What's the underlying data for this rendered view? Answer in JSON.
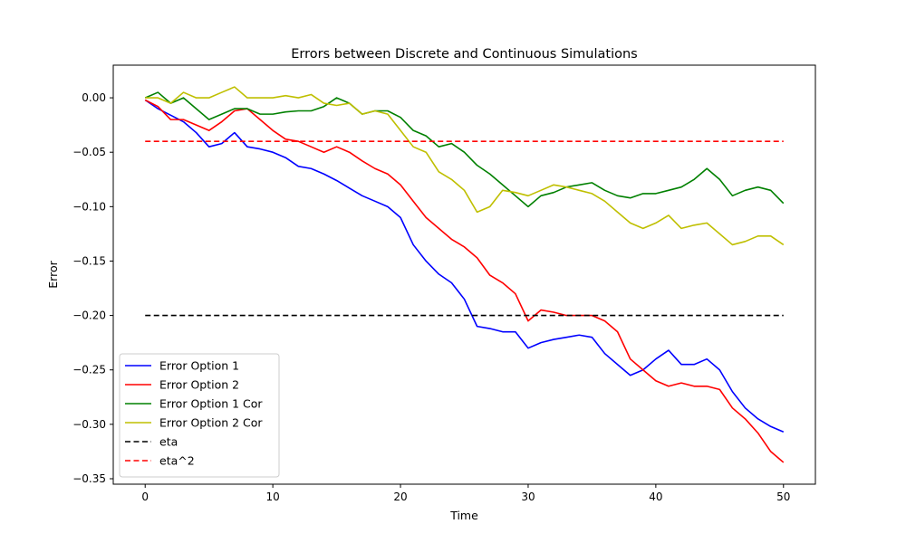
{
  "chart_data": {
    "type": "line",
    "title": "Errors between Discrete and Continuous Simulations",
    "xlabel": "Time",
    "ylabel": "Error",
    "xlim": [
      -2.5,
      52.5
    ],
    "ylim": [
      -0.355,
      0.03
    ],
    "xticks": [
      0,
      10,
      20,
      30,
      40,
      50
    ],
    "yticks": [
      0.0,
      -0.05,
      -0.1,
      -0.15,
      -0.2,
      -0.25,
      -0.3,
      -0.35
    ],
    "ytick_labels": [
      "0.00",
      "−0.05",
      "−0.10",
      "−0.15",
      "−0.20",
      "−0.25",
      "−0.30",
      "−0.35"
    ],
    "xtick_labels": [
      "0",
      "10",
      "20",
      "30",
      "40",
      "50"
    ],
    "grid": false,
    "legend_position": "lower-left",
    "series": [
      {
        "name": "Error Option 1",
        "color": "#0000ff",
        "style": "solid",
        "points": [
          [
            0,
            -0.002
          ],
          [
            1,
            -0.01
          ],
          [
            2,
            -0.016
          ],
          [
            3,
            -0.022
          ],
          [
            4,
            -0.032
          ],
          [
            5,
            -0.045
          ],
          [
            6,
            -0.042
          ],
          [
            7,
            -0.032
          ],
          [
            8,
            -0.045
          ],
          [
            9,
            -0.047
          ],
          [
            10,
            -0.05
          ],
          [
            11,
            -0.055
          ],
          [
            12,
            -0.063
          ],
          [
            13,
            -0.065
          ],
          [
            14,
            -0.07
          ],
          [
            15,
            -0.076
          ],
          [
            16,
            -0.083
          ],
          [
            17,
            -0.09
          ],
          [
            18,
            -0.095
          ],
          [
            19,
            -0.1
          ],
          [
            20,
            -0.11
          ],
          [
            21,
            -0.135
          ],
          [
            22,
            -0.15
          ],
          [
            23,
            -0.162
          ],
          [
            24,
            -0.17
          ],
          [
            25,
            -0.185
          ],
          [
            26,
            -0.21
          ],
          [
            27,
            -0.212
          ],
          [
            28,
            -0.215
          ],
          [
            29,
            -0.215
          ],
          [
            30,
            -0.23
          ],
          [
            31,
            -0.225
          ],
          [
            32,
            -0.222
          ],
          [
            33,
            -0.22
          ],
          [
            34,
            -0.218
          ],
          [
            35,
            -0.22
          ],
          [
            36,
            -0.235
          ],
          [
            37,
            -0.245
          ],
          [
            38,
            -0.255
          ],
          [
            39,
            -0.25
          ],
          [
            40,
            -0.24
          ],
          [
            41,
            -0.232
          ],
          [
            42,
            -0.245
          ],
          [
            43,
            -0.245
          ],
          [
            44,
            -0.24
          ],
          [
            45,
            -0.25
          ],
          [
            46,
            -0.27
          ],
          [
            47,
            -0.285
          ],
          [
            48,
            -0.295
          ],
          [
            49,
            -0.302
          ],
          [
            50,
            -0.307
          ]
        ]
      },
      {
        "name": "Error Option 2",
        "color": "#ff0000",
        "style": "solid",
        "points": [
          [
            0,
            -0.002
          ],
          [
            1,
            -0.008
          ],
          [
            2,
            -0.02
          ],
          [
            3,
            -0.02
          ],
          [
            4,
            -0.025
          ],
          [
            5,
            -0.03
          ],
          [
            6,
            -0.022
          ],
          [
            7,
            -0.012
          ],
          [
            8,
            -0.01
          ],
          [
            9,
            -0.02
          ],
          [
            10,
            -0.03
          ],
          [
            11,
            -0.038
          ],
          [
            12,
            -0.04
          ],
          [
            13,
            -0.045
          ],
          [
            14,
            -0.05
          ],
          [
            15,
            -0.045
          ],
          [
            16,
            -0.05
          ],
          [
            17,
            -0.058
          ],
          [
            18,
            -0.065
          ],
          [
            19,
            -0.07
          ],
          [
            20,
            -0.08
          ],
          [
            21,
            -0.095
          ],
          [
            22,
            -0.11
          ],
          [
            23,
            -0.12
          ],
          [
            24,
            -0.13
          ],
          [
            25,
            -0.137
          ],
          [
            26,
            -0.147
          ],
          [
            27,
            -0.163
          ],
          [
            28,
            -0.17
          ],
          [
            29,
            -0.18
          ],
          [
            30,
            -0.205
          ],
          [
            31,
            -0.195
          ],
          [
            32,
            -0.197
          ],
          [
            33,
            -0.2
          ],
          [
            34,
            -0.2
          ],
          [
            35,
            -0.2
          ],
          [
            36,
            -0.205
          ],
          [
            37,
            -0.215
          ],
          [
            38,
            -0.24
          ],
          [
            39,
            -0.25
          ],
          [
            40,
            -0.26
          ],
          [
            41,
            -0.265
          ],
          [
            42,
            -0.262
          ],
          [
            43,
            -0.265
          ],
          [
            44,
            -0.265
          ],
          [
            45,
            -0.268
          ],
          [
            46,
            -0.285
          ],
          [
            47,
            -0.295
          ],
          [
            48,
            -0.308
          ],
          [
            49,
            -0.325
          ],
          [
            50,
            -0.335
          ]
        ]
      },
      {
        "name": "Error Option 1 Cor",
        "color": "#008000",
        "style": "solid",
        "points": [
          [
            0,
            0.0
          ],
          [
            1,
            0.005
          ],
          [
            2,
            -0.005
          ],
          [
            3,
            0.0
          ],
          [
            4,
            -0.01
          ],
          [
            5,
            -0.02
          ],
          [
            6,
            -0.015
          ],
          [
            7,
            -0.01
          ],
          [
            8,
            -0.01
          ],
          [
            9,
            -0.015
          ],
          [
            10,
            -0.015
          ],
          [
            11,
            -0.013
          ],
          [
            12,
            -0.012
          ],
          [
            13,
            -0.012
          ],
          [
            14,
            -0.008
          ],
          [
            15,
            0.0
          ],
          [
            16,
            -0.005
          ],
          [
            17,
            -0.015
          ],
          [
            18,
            -0.012
          ],
          [
            19,
            -0.012
          ],
          [
            20,
            -0.018
          ],
          [
            21,
            -0.03
          ],
          [
            22,
            -0.035
          ],
          [
            23,
            -0.045
          ],
          [
            24,
            -0.042
          ],
          [
            25,
            -0.05
          ],
          [
            26,
            -0.062
          ],
          [
            27,
            -0.07
          ],
          [
            28,
            -0.08
          ],
          [
            29,
            -0.09
          ],
          [
            30,
            -0.1
          ],
          [
            31,
            -0.09
          ],
          [
            32,
            -0.087
          ],
          [
            33,
            -0.082
          ],
          [
            34,
            -0.08
          ],
          [
            35,
            -0.078
          ],
          [
            36,
            -0.085
          ],
          [
            37,
            -0.09
          ],
          [
            38,
            -0.092
          ],
          [
            39,
            -0.088
          ],
          [
            40,
            -0.088
          ],
          [
            41,
            -0.085
          ],
          [
            42,
            -0.082
          ],
          [
            43,
            -0.075
          ],
          [
            44,
            -0.065
          ],
          [
            45,
            -0.075
          ],
          [
            46,
            -0.09
          ],
          [
            47,
            -0.085
          ],
          [
            48,
            -0.082
          ],
          [
            49,
            -0.085
          ],
          [
            50,
            -0.097
          ]
        ]
      },
      {
        "name": "Error Option 2 Cor",
        "color": "#bfbf00",
        "style": "solid",
        "points": [
          [
            0,
            0.0
          ],
          [
            1,
            0.0
          ],
          [
            2,
            -0.005
          ],
          [
            3,
            0.005
          ],
          [
            4,
            0.0
          ],
          [
            5,
            0.0
          ],
          [
            6,
            0.005
          ],
          [
            7,
            0.01
          ],
          [
            8,
            0.0
          ],
          [
            9,
            0.0
          ],
          [
            10,
            0.0
          ],
          [
            11,
            0.002
          ],
          [
            12,
            0.0
          ],
          [
            13,
            0.003
          ],
          [
            14,
            -0.005
          ],
          [
            15,
            -0.007
          ],
          [
            16,
            -0.005
          ],
          [
            17,
            -0.015
          ],
          [
            18,
            -0.012
          ],
          [
            19,
            -0.015
          ],
          [
            20,
            -0.03
          ],
          [
            21,
            -0.045
          ],
          [
            22,
            -0.05
          ],
          [
            23,
            -0.068
          ],
          [
            24,
            -0.075
          ],
          [
            25,
            -0.085
          ],
          [
            26,
            -0.105
          ],
          [
            27,
            -0.1
          ],
          [
            28,
            -0.085
          ],
          [
            29,
            -0.087
          ],
          [
            30,
            -0.09
          ],
          [
            31,
            -0.085
          ],
          [
            32,
            -0.08
          ],
          [
            33,
            -0.082
          ],
          [
            34,
            -0.085
          ],
          [
            35,
            -0.088
          ],
          [
            36,
            -0.095
          ],
          [
            37,
            -0.105
          ],
          [
            38,
            -0.115
          ],
          [
            39,
            -0.12
          ],
          [
            40,
            -0.115
          ],
          [
            41,
            -0.108
          ],
          [
            42,
            -0.12
          ],
          [
            43,
            -0.117
          ],
          [
            44,
            -0.115
          ],
          [
            45,
            -0.125
          ],
          [
            46,
            -0.135
          ],
          [
            47,
            -0.132
          ],
          [
            48,
            -0.127
          ],
          [
            49,
            -0.127
          ],
          [
            50,
            -0.135
          ]
        ]
      },
      {
        "name": "eta",
        "color": "#000000",
        "style": "dashed",
        "points": [
          [
            0,
            -0.2
          ],
          [
            50,
            -0.2
          ]
        ]
      },
      {
        "name": "eta^2",
        "color": "#ff0000",
        "style": "dashed",
        "points": [
          [
            0,
            -0.04
          ],
          [
            50,
            -0.04
          ]
        ]
      }
    ]
  }
}
